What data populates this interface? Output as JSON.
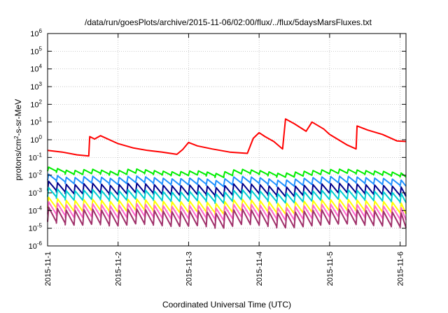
{
  "chart_data": {
    "type": "line",
    "title": "/data/run/goesPlots/archive/2015-11-06/02:00/flux/../flux/5daysMarsFluxes.txt",
    "xlabel": "Coordinated Universal Time (UTC)",
    "ylabel": "protons/cm²-s-sr-MeV",
    "x_domain": [
      "2015-11-01T00:00:00Z",
      "2015-11-06T02:00:00Z"
    ],
    "yscale": "log",
    "ylim": [
      1e-06,
      1000000.0
    ],
    "ytick_exponents": [
      -6,
      -5,
      -4,
      -3,
      -2,
      -1,
      0,
      1,
      2,
      3,
      4,
      5,
      6
    ],
    "ytick_base": "10",
    "xtick_labels": [
      "2015-11-1",
      "2015-11-2",
      "2015-11-3",
      "2015-11-4",
      "2015-11-5",
      "2015-11-6"
    ],
    "xtick_dates": [
      "2015-11-01T00:00:00Z",
      "2015-11-02T00:00:00Z",
      "2015-11-03T00:00:00Z",
      "2015-11-04T00:00:00Z",
      "2015-11-05T00:00:00Z",
      "2015-11-06T00:00:00Z"
    ],
    "grid": true,
    "sawtooth_cycle_hours": 3,
    "series": [
      {
        "color": "#ff0000",
        "points": [
          [
            "2015-11-01T00:00:00Z",
            0.25
          ],
          [
            "2015-11-01T05:00:00Z",
            0.2
          ],
          [
            "2015-11-01T10:00:00Z",
            0.14
          ],
          [
            "2015-11-01T14:00:00Z",
            0.12
          ],
          [
            "2015-11-01T14:20:00Z",
            1.5
          ],
          [
            "2015-11-01T16:00:00Z",
            1.1
          ],
          [
            "2015-11-01T18:00:00Z",
            1.7
          ],
          [
            "2015-11-02T00:00:00Z",
            0.6
          ],
          [
            "2015-11-02T05:00:00Z",
            0.35
          ],
          [
            "2015-11-02T10:00:00Z",
            0.25
          ],
          [
            "2015-11-02T15:00:00Z",
            0.2
          ],
          [
            "2015-11-02T20:00:00Z",
            0.15
          ],
          [
            "2015-11-02T22:00:00Z",
            0.28
          ],
          [
            "2015-11-03T00:00:00Z",
            0.7
          ],
          [
            "2015-11-03T03:00:00Z",
            0.45
          ],
          [
            "2015-11-03T08:00:00Z",
            0.3
          ],
          [
            "2015-11-03T14:00:00Z",
            0.2
          ],
          [
            "2015-11-03T20:00:00Z",
            0.17
          ],
          [
            "2015-11-03T22:00:00Z",
            1.2
          ],
          [
            "2015-11-04T00:00:00Z",
            2.5
          ],
          [
            "2015-11-04T02:00:00Z",
            1.5
          ],
          [
            "2015-11-04T05:00:00Z",
            0.8
          ],
          [
            "2015-11-04T08:00:00Z",
            0.3
          ],
          [
            "2015-11-04T09:00:00Z",
            15
          ],
          [
            "2015-11-04T12:00:00Z",
            8
          ],
          [
            "2015-11-04T16:00:00Z",
            3
          ],
          [
            "2015-11-04T18:00:00Z",
            10
          ],
          [
            "2015-11-04T22:00:00Z",
            4
          ],
          [
            "2015-11-05T00:00:00Z",
            2
          ],
          [
            "2015-11-05T03:00:00Z",
            1
          ],
          [
            "2015-11-05T06:00:00Z",
            0.5
          ],
          [
            "2015-11-05T09:00:00Z",
            0.3
          ],
          [
            "2015-11-05T09:20:00Z",
            6
          ],
          [
            "2015-11-05T13:00:00Z",
            3.5
          ],
          [
            "2015-11-05T18:00:00Z",
            2
          ],
          [
            "2015-11-05T23:00:00Z",
            0.85
          ],
          [
            "2015-11-06T02:00:00Z",
            0.8
          ]
        ]
      },
      {
        "color": "#00ee00",
        "level": [
          0.028,
          0.017,
          0.022,
          0.016,
          0.023,
          0.018,
          0.015,
          0.018,
          0.012,
          0.022,
          0.018,
          0.012,
          0.016,
          0.02,
          0.022,
          0.018,
          0.016,
          0.012
        ],
        "min_ratio": 0.6
      },
      {
        "color": "#1e90ff",
        "level_ratio": 0.4,
        "min_ratio": 0.45
      },
      {
        "color": "#00008b",
        "level_ratio": 0.16,
        "min_ratio": 0.3
      },
      {
        "color": "#00ced1",
        "level_ratio": 0.07,
        "min_ratio": 0.3
      },
      {
        "color": "#ffff00",
        "level_ratio": 0.02,
        "min_ratio": 0.25
      },
      {
        "color": "#ff66cc",
        "level_ratio": 0.011,
        "min_ratio": 0.2
      },
      {
        "color": "#a0306a",
        "level_ratio": 0.0055,
        "min_ratio": 0.15
      }
    ]
  }
}
